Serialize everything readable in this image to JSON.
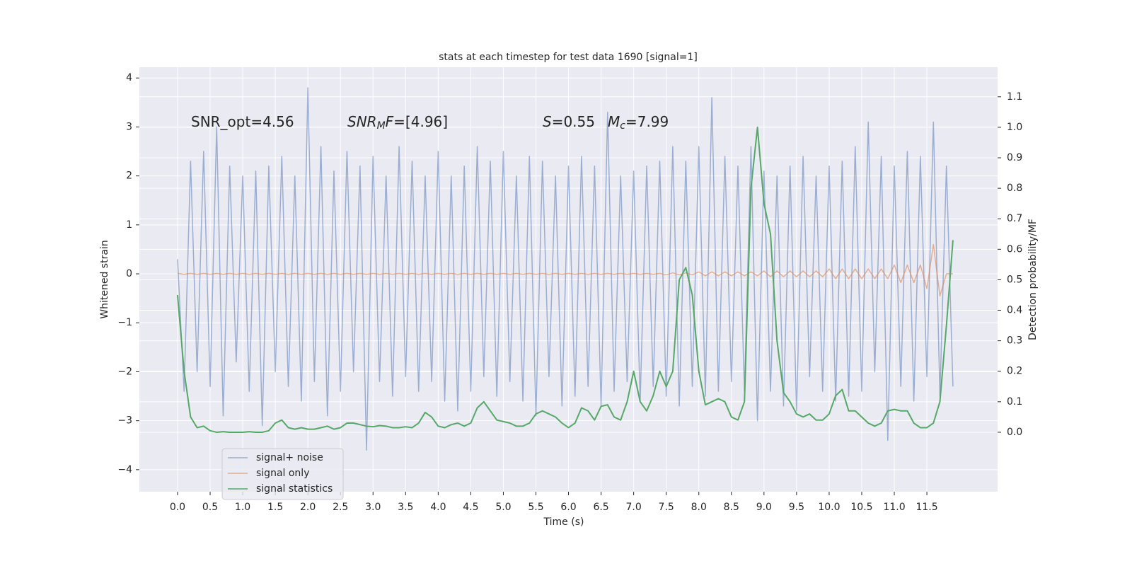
{
  "chart_data": {
    "type": "line",
    "title": "stats at each timestep for test data 1690 [signal=1]",
    "xlabel": "Time (s)",
    "ylabel": "Whitened strain",
    "y2label": "Detection probability/MF",
    "annotations": [
      [
        {
          "text": "SNR_opt=4.56"
        }
      ],
      [
        {
          "text": "SNR",
          "italic": true
        },
        {
          "text": "M",
          "italic": true,
          "sub": true
        },
        {
          "text": "F",
          "italic": true
        },
        {
          "text": "=[4.96]"
        }
      ],
      [
        {
          "text": "S",
          "italic": true
        },
        {
          "text": "=0.55"
        }
      ],
      [
        {
          "text": "M",
          "italic": true
        },
        {
          "text": "c",
          "italic": true,
          "sub": true
        },
        {
          "text": "=7.99"
        }
      ]
    ],
    "x": [
      0.0,
      0.1,
      0.2,
      0.3,
      0.4,
      0.5,
      0.6,
      0.7,
      0.8,
      0.9,
      1.0,
      1.1,
      1.2,
      1.3,
      1.4,
      1.5,
      1.6,
      1.7,
      1.8,
      1.9,
      2.0,
      2.1,
      2.2,
      2.3,
      2.4,
      2.5,
      2.6,
      2.7,
      2.8,
      2.9,
      3.0,
      3.1,
      3.2,
      3.3,
      3.4,
      3.5,
      3.6,
      3.7,
      3.8,
      3.9,
      4.0,
      4.1,
      4.2,
      4.3,
      4.4,
      4.5,
      4.6,
      4.7,
      4.8,
      4.9,
      5.0,
      5.1,
      5.2,
      5.3,
      5.4,
      5.5,
      5.6,
      5.7,
      5.8,
      5.9,
      6.0,
      6.1,
      6.2,
      6.3,
      6.4,
      6.5,
      6.6,
      6.7,
      6.8,
      6.9,
      7.0,
      7.1,
      7.2,
      7.3,
      7.4,
      7.5,
      7.6,
      7.7,
      7.8,
      7.9,
      8.0,
      8.1,
      8.2,
      8.3,
      8.4,
      8.5,
      8.6,
      8.7,
      8.8,
      8.9,
      9.0,
      9.1,
      9.2,
      9.3,
      9.4,
      9.5,
      9.6,
      9.7,
      9.8,
      9.9,
      10.0,
      10.1,
      10.2,
      10.3,
      10.4,
      10.5,
      10.6,
      10.7,
      10.8,
      10.9,
      11.0,
      11.1,
      11.2,
      11.3,
      11.4,
      11.5,
      11.6,
      11.7,
      11.8,
      11.9
    ],
    "series": [
      {
        "name": "signal+ noise",
        "color": "#4c72b0",
        "opacity": 0.5,
        "values": [
          0.3,
          -2.4,
          2.3,
          -2.0,
          2.5,
          -2.3,
          3.0,
          -2.9,
          2.2,
          -1.8,
          2.0,
          -2.4,
          2.1,
          -3.1,
          2.2,
          -2.0,
          2.4,
          -2.3,
          2.0,
          -2.6,
          3.8,
          -2.2,
          2.6,
          -2.9,
          2.1,
          -2.4,
          2.5,
          -2.0,
          2.2,
          -3.6,
          2.4,
          -2.2,
          2.0,
          -2.5,
          2.6,
          -2.1,
          2.3,
          -2.4,
          2.0,
          -2.2,
          2.5,
          -2.6,
          2.0,
          -2.8,
          2.2,
          -2.4,
          2.6,
          -2.1,
          2.3,
          -2.5,
          2.5,
          -2.2,
          2.0,
          -2.6,
          2.4,
          -2.9,
          2.3,
          -2.1,
          2.0,
          -2.7,
          2.2,
          -2.5,
          2.4,
          -2.3,
          2.2,
          -2.7,
          3.3,
          -2.4,
          2.0,
          -2.2,
          2.1,
          -2.6,
          2.2,
          -2.3,
          2.3,
          -2.5,
          2.6,
          -2.7,
          2.3,
          -2.3,
          2.6,
          -2.5,
          3.6,
          -2.4,
          2.4,
          -2.2,
          2.2,
          -2.4,
          2.6,
          -3.0,
          2.1,
          -2.4,
          2.0,
          -2.7,
          2.2,
          -2.8,
          2.4,
          -2.1,
          2.0,
          -2.4,
          2.2,
          -2.6,
          2.3,
          -2.5,
          2.6,
          -2.4,
          3.1,
          -2.0,
          2.4,
          -3.4,
          2.2,
          -2.3,
          2.5,
          -2.6,
          2.4,
          -2.1,
          3.1,
          -2.5,
          2.2,
          -2.3
        ]
      },
      {
        "name": "signal only",
        "color": "#dd8452",
        "opacity": 0.6,
        "values": [
          0.01,
          -0.01,
          0.01,
          -0.01,
          0.01,
          -0.01,
          0.01,
          -0.01,
          0.01,
          -0.01,
          0.01,
          -0.01,
          0.01,
          -0.01,
          0.01,
          -0.01,
          0.01,
          -0.01,
          0.01,
          -0.01,
          0.01,
          -0.01,
          0.01,
          -0.01,
          0.01,
          -0.01,
          0.01,
          -0.01,
          0.01,
          -0.01,
          0.01,
          -0.01,
          0.01,
          -0.01,
          0.01,
          -0.01,
          0.01,
          -0.01,
          0.01,
          -0.01,
          0.01,
          -0.01,
          0.01,
          -0.01,
          0.01,
          -0.01,
          0.01,
          -0.01,
          0.01,
          -0.01,
          0.01,
          -0.01,
          0.01,
          -0.01,
          0.01,
          -0.01,
          0.01,
          -0.01,
          0.01,
          -0.01,
          0.01,
          -0.01,
          0.01,
          -0.01,
          0.01,
          -0.01,
          0.01,
          -0.01,
          0.01,
          -0.01,
          0.01,
          -0.01,
          0.01,
          -0.01,
          0.01,
          -0.02,
          0.02,
          -0.02,
          0.02,
          -0.02,
          0.04,
          -0.04,
          0.04,
          -0.04,
          0.04,
          -0.04,
          0.04,
          -0.04,
          0.04,
          -0.04,
          0.06,
          -0.06,
          0.06,
          -0.06,
          0.06,
          -0.06,
          0.06,
          -0.06,
          0.06,
          -0.06,
          0.1,
          -0.1,
          0.1,
          -0.1,
          0.1,
          -0.1,
          0.1,
          -0.1,
          0.1,
          -0.1,
          0.18,
          -0.18,
          0.18,
          -0.18,
          0.18,
          -0.3,
          0.6,
          -0.45,
          0.0,
          0.0
        ]
      },
      {
        "name": "signal statistics",
        "color": "#55a868",
        "axis": "y2",
        "values": [
          0.45,
          0.2,
          0.05,
          0.015,
          0.02,
          0.005,
          0.0,
          0.002,
          0.0,
          0.0,
          0.0,
          0.002,
          0.0,
          0.0,
          0.005,
          0.03,
          0.04,
          0.015,
          0.01,
          0.015,
          0.01,
          0.01,
          0.015,
          0.02,
          0.01,
          0.015,
          0.03,
          0.03,
          0.025,
          0.02,
          0.018,
          0.022,
          0.02,
          0.015,
          0.015,
          0.018,
          0.015,
          0.03,
          0.065,
          0.05,
          0.02,
          0.015,
          0.025,
          0.03,
          0.02,
          0.03,
          0.08,
          0.1,
          0.07,
          0.04,
          0.035,
          0.03,
          0.02,
          0.02,
          0.03,
          0.06,
          0.07,
          0.06,
          0.05,
          0.03,
          0.015,
          0.03,
          0.08,
          0.07,
          0.04,
          0.085,
          0.09,
          0.05,
          0.04,
          0.1,
          0.2,
          0.1,
          0.07,
          0.12,
          0.2,
          0.15,
          0.2,
          0.5,
          0.54,
          0.45,
          0.2,
          0.09,
          0.1,
          0.11,
          0.1,
          0.05,
          0.04,
          0.1,
          0.8,
          1.0,
          0.75,
          0.65,
          0.3,
          0.13,
          0.1,
          0.06,
          0.05,
          0.06,
          0.04,
          0.04,
          0.06,
          0.12,
          0.14,
          0.07,
          0.07,
          0.05,
          0.03,
          0.02,
          0.03,
          0.07,
          0.075,
          0.07,
          0.07,
          0.03,
          0.015,
          0.015,
          0.03,
          0.1,
          0.35,
          0.63
        ]
      }
    ],
    "xlim": [
      -0.586,
      12.585
    ],
    "xticks": [
      {
        "value": 0,
        "label": "0.0"
      },
      {
        "value": 0.5,
        "label": "0.5"
      },
      {
        "value": 1,
        "label": "1.0"
      },
      {
        "value": 1.5,
        "label": "1.5"
      },
      {
        "value": 2,
        "label": "2.0"
      },
      {
        "value": 2.5,
        "label": "2.5"
      },
      {
        "value": 3,
        "label": "3.0"
      },
      {
        "value": 3.5,
        "label": "3.5"
      },
      {
        "value": 4,
        "label": "4.0"
      },
      {
        "value": 4.5,
        "label": "4.5"
      },
      {
        "value": 5,
        "label": "5.0"
      },
      {
        "value": 5.5,
        "label": "5.5"
      },
      {
        "value": 6,
        "label": "6.0"
      },
      {
        "value": 6.5,
        "label": "6.5"
      },
      {
        "value": 7,
        "label": "7.0"
      },
      {
        "value": 7.5,
        "label": "7.5"
      },
      {
        "value": 8,
        "label": "8.0"
      },
      {
        "value": 8.5,
        "label": "8.5"
      },
      {
        "value": 9,
        "label": "9.0"
      },
      {
        "value": 9.5,
        "label": "9.5"
      },
      {
        "value": 10,
        "label": "10.0"
      },
      {
        "value": 10.5,
        "label": "10.5"
      },
      {
        "value": 11,
        "label": "11.0"
      },
      {
        "value": 11.5,
        "label": "11.5"
      }
    ],
    "ylim": [
      -4.45,
      4.22
    ],
    "yticks": [
      {
        "value": -4,
        "label": "−4"
      },
      {
        "value": -3,
        "label": "−3"
      },
      {
        "value": -2,
        "label": "−2"
      },
      {
        "value": -1,
        "label": "−1"
      },
      0,
      1,
      2,
      3,
      4
    ],
    "y2lim": [
      -0.195,
      1.197
    ],
    "y2ticks": [
      {
        "value": 0,
        "label": "0.0"
      },
      {
        "value": 0.1,
        "label": "0.1"
      },
      {
        "value": 0.2,
        "label": "0.2"
      },
      {
        "value": 0.3,
        "label": "0.3"
      },
      {
        "value": 0.4,
        "label": "0.4"
      },
      {
        "value": 0.5,
        "label": "0.5"
      },
      {
        "value": 0.6,
        "label": "0.6"
      },
      {
        "value": 0.7,
        "label": "0.7"
      },
      {
        "value": 0.8,
        "label": "0.8"
      },
      {
        "value": 0.9,
        "label": "0.9"
      },
      {
        "value": 1,
        "label": "1.0"
      },
      {
        "value": 1.1,
        "label": "1.1"
      }
    ],
    "grid": true,
    "legend": "lower left",
    "background": "#eaeaf2"
  }
}
